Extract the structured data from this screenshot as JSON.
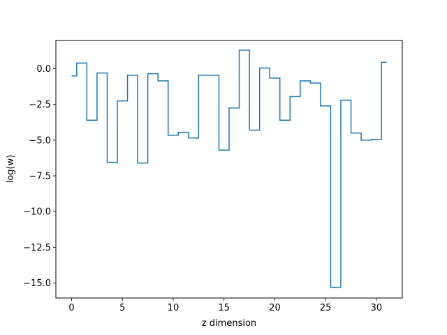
{
  "chart_data": {
    "type": "line",
    "drawstyle": "steps-mid",
    "title": "",
    "xlabel": "z dimension",
    "ylabel": "log(w)",
    "xlim": [
      -1.55,
      32.55
    ],
    "ylim": [
      -16.05,
      1.98
    ],
    "xticks": [
      0,
      5,
      10,
      15,
      20,
      25,
      30
    ],
    "xtick_labels": [
      "0",
      "5",
      "10",
      "15",
      "20",
      "25",
      "30"
    ],
    "yticks": [
      0.0,
      -2.5,
      -5.0,
      -7.5,
      -10.0,
      -12.5,
      -15.0
    ],
    "ytick_labels": [
      "0.0",
      "−2.5",
      "−5.0",
      "−7.5",
      "−10.0",
      "−12.5",
      "−15.0"
    ],
    "grid": false,
    "legend": "none",
    "series": [
      {
        "color": "#1f77b4",
        "x": [
          0,
          1,
          2,
          3,
          4,
          5,
          6,
          7,
          8,
          9,
          10,
          11,
          12,
          13,
          14,
          15,
          16,
          17,
          18,
          19,
          20,
          21,
          22,
          23,
          24,
          25,
          26,
          27,
          28,
          29,
          30,
          31
        ],
        "y": [
          -0.5,
          0.4,
          -3.6,
          -0.3,
          -6.55,
          -2.25,
          -0.45,
          -6.6,
          -0.35,
          -0.85,
          -4.65,
          -4.45,
          -4.85,
          -0.45,
          -0.45,
          -5.7,
          -2.75,
          1.3,
          -4.3,
          0.05,
          -0.65,
          -3.6,
          -1.95,
          -0.85,
          -1.0,
          -2.6,
          -15.3,
          -2.2,
          -4.5,
          -5.0,
          -4.95,
          0.45
        ]
      }
    ]
  }
}
